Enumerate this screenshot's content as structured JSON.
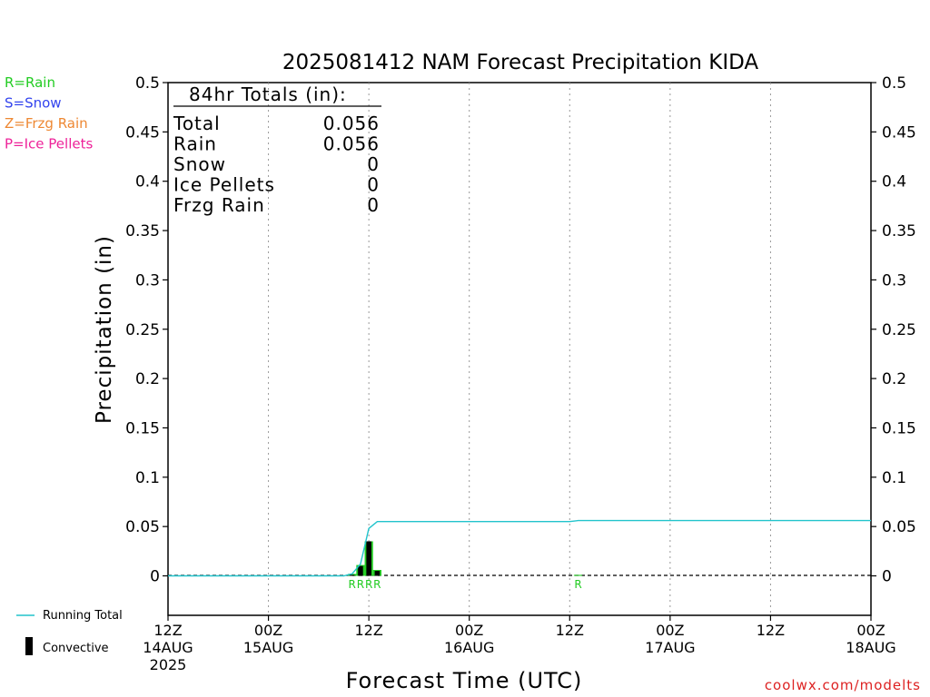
{
  "colors": {
    "rain": "#22cc22",
    "snow": "#3344ee",
    "frzg_rain": "#ee8833",
    "ice_pellets": "#ee2299",
    "running_total": "#22c4cc",
    "convective": "#000000",
    "grid": "#999999",
    "credit": "#dd2222"
  },
  "legend_left": [
    {
      "key": "rain",
      "text": "R=Rain"
    },
    {
      "key": "snow",
      "text": "S=Snow"
    },
    {
      "key": "frzg_rain",
      "text": "Z=Frzg Rain"
    },
    {
      "key": "ice_pellets",
      "text": "P=Ice Pellets"
    }
  ],
  "legend_bottom": {
    "running_total": "Running Total",
    "convective": "Convective"
  },
  "totals": {
    "header": "84hr Totals (in):",
    "rows": [
      {
        "label": "Total",
        "value": "0.056"
      },
      {
        "label": "Rain",
        "value": "0.056"
      },
      {
        "label": "Snow",
        "value": "0"
      },
      {
        "label": "Ice Pellets",
        "value": "0"
      },
      {
        "label": "Frzg Rain",
        "value": "0"
      }
    ]
  },
  "credit": "coolwx.com/modelts",
  "chart_data": {
    "type": "bar",
    "title": "2025081412 NAM Forecast Precipitation KIDA",
    "xlabel": "Forecast Time (UTC)",
    "ylabel": "Precipitation (in)",
    "ylim": [
      -0.04,
      0.5
    ],
    "yticks": [
      0,
      0.05,
      0.1,
      0.15,
      0.2,
      0.25,
      0.3,
      0.35,
      0.4,
      0.45,
      0.5
    ],
    "ytick_labels": [
      "0",
      "0.05",
      "0.1",
      "0.15",
      "0.2",
      "0.25",
      "0.3",
      "0.35",
      "0.4",
      "0.45",
      "0.5"
    ],
    "x_range_hours": [
      0,
      84
    ],
    "xticks": [
      {
        "hour": 0,
        "lines": [
          "12Z",
          "14AUG",
          "2025"
        ]
      },
      {
        "hour": 12,
        "lines": [
          "00Z",
          "15AUG"
        ]
      },
      {
        "hour": 24,
        "lines": [
          "12Z"
        ]
      },
      {
        "hour": 36,
        "lines": [
          "00Z",
          "16AUG"
        ]
      },
      {
        "hour": 48,
        "lines": [
          "12Z"
        ]
      },
      {
        "hour": 60,
        "lines": [
          "00Z",
          "17AUG"
        ]
      },
      {
        "hour": 72,
        "lines": [
          "12Z"
        ]
      },
      {
        "hour": 84,
        "lines": [
          "00Z",
          "18AUG"
        ]
      }
    ],
    "grid": "vertical dotted at 12-hour intervals",
    "series": [
      {
        "name": "Running Total",
        "type": "line",
        "points": [
          [
            0,
            0
          ],
          [
            21,
            0
          ],
          [
            22,
            0.002
          ],
          [
            23,
            0.012
          ],
          [
            24,
            0.048
          ],
          [
            25,
            0.055
          ],
          [
            48,
            0.055
          ],
          [
            49,
            0.056
          ],
          [
            84,
            0.056
          ]
        ]
      },
      {
        "name": "Rain",
        "type": "bar",
        "bars": [
          {
            "hour": 22,
            "value": 0.002
          },
          {
            "hour": 23,
            "value": 0.011
          },
          {
            "hour": 24,
            "value": 0.035
          },
          {
            "hour": 25,
            "value": 0.006
          },
          {
            "hour": 49,
            "value": 0.001
          }
        ]
      },
      {
        "name": "Convective",
        "type": "bar",
        "bars": [
          {
            "hour": 22,
            "value": 0.001
          },
          {
            "hour": 23,
            "value": 0.01
          },
          {
            "hour": 24,
            "value": 0.035
          },
          {
            "hour": 25,
            "value": 0.005
          }
        ]
      }
    ],
    "ptype_markers": [
      {
        "hour": 22,
        "text": "R"
      },
      {
        "hour": 23,
        "text": "R"
      },
      {
        "hour": 24,
        "text": "R"
      },
      {
        "hour": 25,
        "text": "R"
      },
      {
        "hour": 49,
        "text": "R"
      }
    ]
  }
}
